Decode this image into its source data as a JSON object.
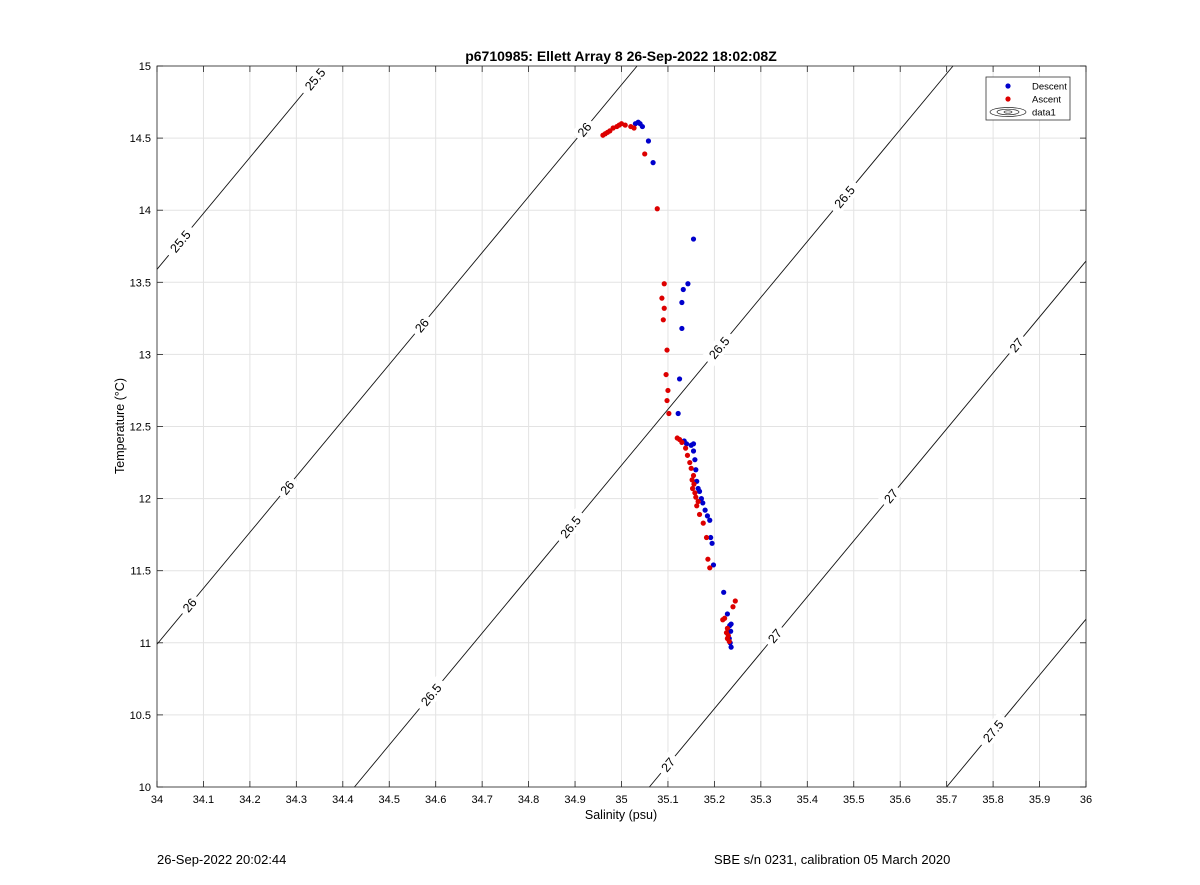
{
  "footer": {
    "left": "26-Sep-2022 20:02:44",
    "right": "SBE s/n 0231, calibration 05 March 2020"
  },
  "chart_data": {
    "type": "scatter",
    "title": "p6710985: Ellett Array 8 26-Sep-2022 18:02:08Z",
    "xlabel": "Salinity (psu)",
    "ylabel": "Temperature (°C)",
    "xlim": [
      34,
      36
    ],
    "ylim": [
      10,
      15
    ],
    "xticks": [
      "34",
      "34.1",
      "34.2",
      "34.3",
      "34.4",
      "34.5",
      "34.6",
      "34.7",
      "34.8",
      "34.9",
      "35",
      "35.1",
      "35.2",
      "35.3",
      "35.4",
      "35.5",
      "35.6",
      "35.7",
      "35.8",
      "35.9",
      "36"
    ],
    "yticks": [
      "10",
      "10.5",
      "11",
      "11.5",
      "12",
      "12.5",
      "13",
      "13.5",
      "14",
      "14.5",
      "15"
    ],
    "grid": true,
    "legend_position": "top-right",
    "legend": [
      {
        "label": "Descent",
        "color": "#0000cc",
        "marker": "dot"
      },
      {
        "label": "Ascent",
        "color": "#dd0000",
        "marker": "dot"
      },
      {
        "label": "data1",
        "color": "#000000",
        "marker": "contour"
      }
    ],
    "series": [
      {
        "name": "Descent",
        "color": "#0000cc",
        "points": [
          [
            35.03,
            14.6
          ],
          [
            35.036,
            14.61
          ],
          [
            35.04,
            14.6
          ],
          [
            35.045,
            14.58
          ],
          [
            35.058,
            14.48
          ],
          [
            35.068,
            14.33
          ],
          [
            35.155,
            13.8
          ],
          [
            35.143,
            13.49
          ],
          [
            35.133,
            13.45
          ],
          [
            35.13,
            13.36
          ],
          [
            35.13,
            13.18
          ],
          [
            35.125,
            12.83
          ],
          [
            35.122,
            12.59
          ],
          [
            35.135,
            12.4
          ],
          [
            35.14,
            12.38
          ],
          [
            35.15,
            12.37
          ],
          [
            35.155,
            12.38
          ],
          [
            35.155,
            12.33
          ],
          [
            35.158,
            12.27
          ],
          [
            35.16,
            12.2
          ],
          [
            35.162,
            12.12
          ],
          [
            35.165,
            12.07
          ],
          [
            35.168,
            12.05
          ],
          [
            35.172,
            12.0
          ],
          [
            35.175,
            11.97
          ],
          [
            35.18,
            11.92
          ],
          [
            35.185,
            11.88
          ],
          [
            35.19,
            11.85
          ],
          [
            35.192,
            11.73
          ],
          [
            35.195,
            11.69
          ],
          [
            35.198,
            11.54
          ],
          [
            35.22,
            11.35
          ],
          [
            35.228,
            11.2
          ],
          [
            35.233,
            11.12
          ],
          [
            35.236,
            11.13
          ],
          [
            35.235,
            11.08
          ],
          [
            35.232,
            11.03
          ],
          [
            35.234,
            11.0
          ],
          [
            35.236,
            10.97
          ]
        ]
      },
      {
        "name": "Ascent",
        "color": "#dd0000",
        "points": [
          [
            34.96,
            14.52
          ],
          [
            34.965,
            14.53
          ],
          [
            34.97,
            14.54
          ],
          [
            34.975,
            14.55
          ],
          [
            34.982,
            14.57
          ],
          [
            34.99,
            14.58
          ],
          [
            34.995,
            14.59
          ],
          [
            35.0,
            14.6
          ],
          [
            35.008,
            14.59
          ],
          [
            35.02,
            14.58
          ],
          [
            35.027,
            14.57
          ],
          [
            35.05,
            14.39
          ],
          [
            35.077,
            14.01
          ],
          [
            35.092,
            13.49
          ],
          [
            35.087,
            13.39
          ],
          [
            35.092,
            13.32
          ],
          [
            35.09,
            13.24
          ],
          [
            35.098,
            13.03
          ],
          [
            35.096,
            12.86
          ],
          [
            35.1,
            12.75
          ],
          [
            35.098,
            12.68
          ],
          [
            35.102,
            12.59
          ],
          [
            35.12,
            12.42
          ],
          [
            35.125,
            12.41
          ],
          [
            35.13,
            12.39
          ],
          [
            35.138,
            12.35
          ],
          [
            35.142,
            12.3
          ],
          [
            35.147,
            12.25
          ],
          [
            35.15,
            12.21
          ],
          [
            35.155,
            12.16
          ],
          [
            35.152,
            12.13
          ],
          [
            35.156,
            12.1
          ],
          [
            35.153,
            12.07
          ],
          [
            35.158,
            12.04
          ],
          [
            35.16,
            12.01
          ],
          [
            35.165,
            11.98
          ],
          [
            35.162,
            11.95
          ],
          [
            35.168,
            11.89
          ],
          [
            35.176,
            11.83
          ],
          [
            35.183,
            11.73
          ],
          [
            35.186,
            11.58
          ],
          [
            35.19,
            11.52
          ],
          [
            35.245,
            11.29
          ],
          [
            35.24,
            11.25
          ],
          [
            35.222,
            11.17
          ],
          [
            35.218,
            11.16
          ],
          [
            35.228,
            11.1
          ],
          [
            35.226,
            11.07
          ],
          [
            35.23,
            11.05
          ],
          [
            35.228,
            11.03
          ],
          [
            35.232,
            11.01
          ]
        ]
      }
    ],
    "isopycnals": [
      {
        "label": "25.5",
        "s0": 34.0,
        "t0": 13.59,
        "label_positions": [
          34.34,
          34.05
        ]
      },
      {
        "label": "26",
        "s0": 34.0,
        "t0": 10.99,
        "label_positions": [
          34.92,
          34.57,
          34.28,
          34.07
        ]
      },
      {
        "label": "26.5",
        "s0": 34.425,
        "t0": 10.0,
        "label_positions": [
          35.48,
          35.21,
          34.89,
          34.59,
          34.38
        ]
      },
      {
        "label": "27",
        "s0": 35.06,
        "t0": 10.0,
        "label_positions": [
          35.85,
          35.58,
          35.33,
          35.1
        ]
      },
      {
        "label": "27.5",
        "s0": 35.7,
        "t0": 10.0,
        "label_positions": [
          35.8
        ]
      }
    ],
    "isopycnal_slope_degC_per_psu": 3.88
  }
}
